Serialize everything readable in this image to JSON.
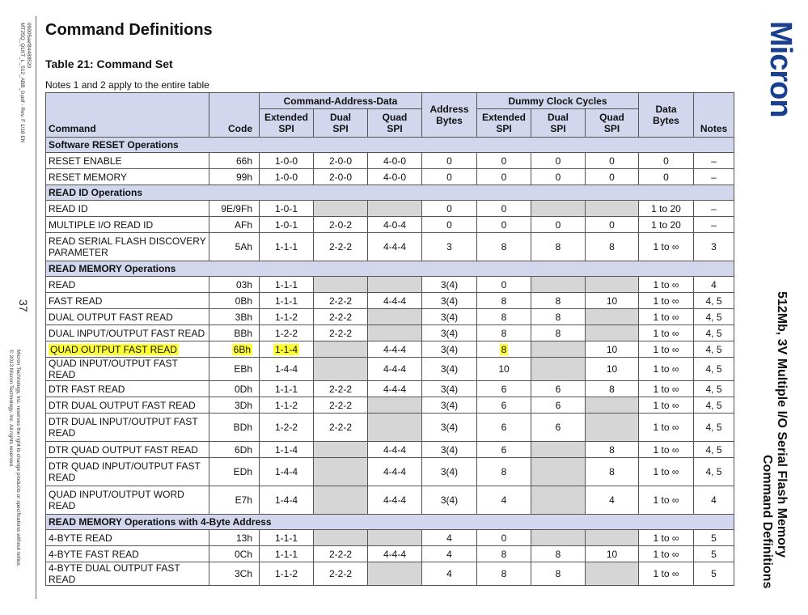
{
  "sidebar": {
    "doc_id_line1": "09005aef84488520",
    "doc_id_line2": "MT25Q_QLKT_L_512_ABB_0.pdf - Rev. F 1/18 EN",
    "page_number": "37",
    "legal_line1": "Micron Technology, Inc. reserves the right to change products or specifications without notice.",
    "legal_line2": "© 2013 Micron Technology, Inc. All rights reserved."
  },
  "header": {
    "heading": "Command Definitions",
    "table_title": "Table 21: Command Set",
    "notes": "Notes 1 and 2 apply to the entire table"
  },
  "brand": {
    "logo": "Micron",
    "logo_color": "#1a3f8f",
    "product": "512Mb, 3V Multiple I/O Serial Flash Memory",
    "section": "Command Definitions"
  },
  "table": {
    "group_headers": {
      "command_address_data": "Command-Address-Data",
      "dummy_clock_cycles": "Dummy Clock Cycles"
    },
    "columns": {
      "command": "Command",
      "code": "Code",
      "cad_extended": [
        "Extended",
        "SPI"
      ],
      "cad_dual": [
        "Dual",
        "SPI"
      ],
      "cad_quad": [
        "Quad",
        "SPI"
      ],
      "address_bytes": [
        "Address",
        "Bytes"
      ],
      "dc_extended": [
        "Extended",
        "SPI"
      ],
      "dc_dual": [
        "Dual",
        "SPI"
      ],
      "dc_quad": [
        "Quad",
        "SPI"
      ],
      "data_bytes": [
        "Data",
        "Bytes"
      ],
      "notes": "Notes"
    },
    "highlight_color": "#ffff33",
    "rows": [
      {
        "section": "Software RESET Operations"
      },
      {
        "cells": [
          "RESET ENABLE",
          "66h",
          "1-0-0",
          "2-0-0",
          "4-0-0",
          "0",
          "0",
          "0",
          "0",
          "0",
          "–"
        ]
      },
      {
        "cells": [
          "RESET MEMORY",
          "99h",
          "1-0-0",
          "2-0-0",
          "4-0-0",
          "0",
          "0",
          "0",
          "0",
          "0",
          "–"
        ]
      },
      {
        "section": "READ ID Operations"
      },
      {
        "cells": [
          "READ ID",
          "9E/9Fh",
          "1-0-1",
          "",
          "",
          "0",
          "0",
          "",
          "",
          "1 to 20",
          "–"
        ],
        "gray": [
          3,
          4,
          7,
          8
        ]
      },
      {
        "cells": [
          "MULTIPLE I/O READ ID",
          "AFh",
          "1-0-1",
          "2-0-2",
          "4-0-4",
          "0",
          "0",
          "0",
          "0",
          "1 to 20",
          "–"
        ]
      },
      {
        "cells": [
          "READ SERIAL FLASH DISCOVERY PARAMETER",
          "5Ah",
          "1-1-1",
          "2-2-2",
          "4-4-4",
          "3",
          "8",
          "8",
          "8",
          "1 to ∞",
          "3"
        ],
        "tall": true
      },
      {
        "section": "READ MEMORY Operations"
      },
      {
        "cells": [
          "READ",
          "03h",
          "1-1-1",
          "",
          "",
          "3(4)",
          "0",
          "",
          "",
          "1 to ∞",
          "4"
        ],
        "gray": [
          3,
          4,
          7,
          8
        ]
      },
      {
        "cells": [
          "FAST READ",
          "0Bh",
          "1-1-1",
          "2-2-2",
          "4-4-4",
          "3(4)",
          "8",
          "8",
          "10",
          "1 to ∞",
          "4, 5"
        ]
      },
      {
        "cells": [
          "DUAL OUTPUT FAST READ",
          "3Bh",
          "1-1-2",
          "2-2-2",
          "",
          "3(4)",
          "8",
          "8",
          "",
          "1 to ∞",
          "4, 5"
        ],
        "gray": [
          4,
          8
        ]
      },
      {
        "cells": [
          "DUAL INPUT/OUTPUT FAST READ",
          "BBh",
          "1-2-2",
          "2-2-2",
          "",
          "3(4)",
          "8",
          "8",
          "",
          "1 to ∞",
          "4, 5"
        ],
        "gray": [
          4,
          8
        ]
      },
      {
        "cells": [
          "QUAD OUTPUT FAST READ",
          "6Bh",
          "1-1-4",
          "",
          "4-4-4",
          "3(4)",
          "8",
          "",
          "10",
          "1 to ∞",
          "4, 5"
        ],
        "gray": [
          3,
          7
        ],
        "highlight": [
          0,
          1,
          2,
          6
        ]
      },
      {
        "cells": [
          "QUAD INPUT/OUTPUT FAST READ",
          "EBh",
          "1-4-4",
          "",
          "4-4-4",
          "3(4)",
          "10",
          "",
          "10",
          "1 to ∞",
          "4, 5"
        ],
        "gray": [
          3,
          7
        ]
      },
      {
        "cells": [
          "DTR FAST READ",
          "0Dh",
          "1-1-1",
          "2-2-2",
          "4-4-4",
          "3(4)",
          "6",
          "6",
          "8",
          "1 to ∞",
          "4, 5"
        ]
      },
      {
        "cells": [
          "DTR DUAL OUTPUT FAST READ",
          "3Dh",
          "1-1-2",
          "2-2-2",
          "",
          "3(4)",
          "6",
          "6",
          "",
          "1 to ∞",
          "4, 5"
        ],
        "gray": [
          4,
          8
        ]
      },
      {
        "cells": [
          "DTR DUAL INPUT/OUTPUT FAST READ",
          "BDh",
          "1-2-2",
          "2-2-2",
          "",
          "3(4)",
          "6",
          "6",
          "",
          "1 to ∞",
          "4, 5"
        ],
        "gray": [
          4,
          8
        ],
        "tall": true
      },
      {
        "cells": [
          "DTR QUAD OUTPUT FAST READ",
          "6Dh",
          "1-1-4",
          "",
          "4-4-4",
          "3(4)",
          "6",
          "",
          "8",
          "1 to ∞",
          "4, 5"
        ],
        "gray": [
          3,
          7
        ]
      },
      {
        "cells": [
          "DTR QUAD INPUT/OUTPUT FAST READ",
          "EDh",
          "1-4-4",
          "",
          "4-4-4",
          "3(4)",
          "8",
          "",
          "8",
          "1 to ∞",
          "4, 5"
        ],
        "gray": [
          3,
          7
        ],
        "tall": true
      },
      {
        "cells": [
          "QUAD INPUT/OUTPUT WORD READ",
          "E7h",
          "1-4-4",
          "",
          "4-4-4",
          "3(4)",
          "4",
          "",
          "4",
          "1 to ∞",
          "4"
        ],
        "gray": [
          3,
          7
        ],
        "tall": true
      },
      {
        "section": "READ MEMORY Operations with 4-Byte Address"
      },
      {
        "cells": [
          "4-BYTE READ",
          "13h",
          "1-1-1",
          "",
          "",
          "4",
          "0",
          "",
          "",
          "1 to ∞",
          "5"
        ],
        "gray": [
          3,
          4,
          7,
          8
        ]
      },
      {
        "cells": [
          "4-BYTE FAST READ",
          "0Ch",
          "1-1-1",
          "2-2-2",
          "4-4-4",
          "4",
          "8",
          "8",
          "10",
          "1 to ∞",
          "5"
        ]
      },
      {
        "cells": [
          "4-BYTE DUAL OUTPUT FAST READ",
          "3Ch",
          "1-1-2",
          "2-2-2",
          "",
          "4",
          "8",
          "8",
          "",
          "1 to ∞",
          "5"
        ],
        "gray": [
          4,
          8
        ]
      }
    ]
  }
}
